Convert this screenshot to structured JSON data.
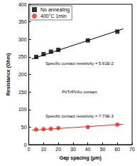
{
  "chart_data": {
    "type": "scatter",
    "x_label": "Gap spacing (μm)",
    "y_label": "Resistance (Ohm)",
    "xlim": [
      0,
      70
    ],
    "xticks": [
      0,
      10,
      20,
      30,
      40,
      50,
      60,
      70
    ],
    "ylim": [
      0,
      400
    ],
    "yticks": [
      0,
      50,
      100,
      150,
      200,
      250,
      300,
      350,
      400
    ],
    "grid": false,
    "legend": "upper left",
    "series": [
      {
        "name": "No annealing",
        "color": "#000000",
        "marker": "square",
        "x": [
          5,
          10,
          15,
          20,
          40,
          60
        ],
        "values": [
          250,
          258,
          265,
          270,
          297,
          322
        ],
        "fit_line": {
          "x": [
            2,
            64
          ],
          "values": [
            244,
            330
          ]
        }
      },
      {
        "name": "400°C 1min",
        "color": "#e8261c",
        "marker": "circle",
        "x": [
          5,
          10,
          15,
          20,
          40,
          60
        ],
        "values": [
          43,
          44,
          45,
          47,
          50,
          57
        ],
        "fit_line": {
          "x": [
            2,
            64
          ],
          "values": [
            41,
            58
          ]
        }
      }
    ],
    "annotations": [
      "Specific contact resistivity = 5.61E-2",
      "Pt/Ti/Pt/Au contact",
      "Specific contact resistivity = 7.73E-3"
    ]
  }
}
